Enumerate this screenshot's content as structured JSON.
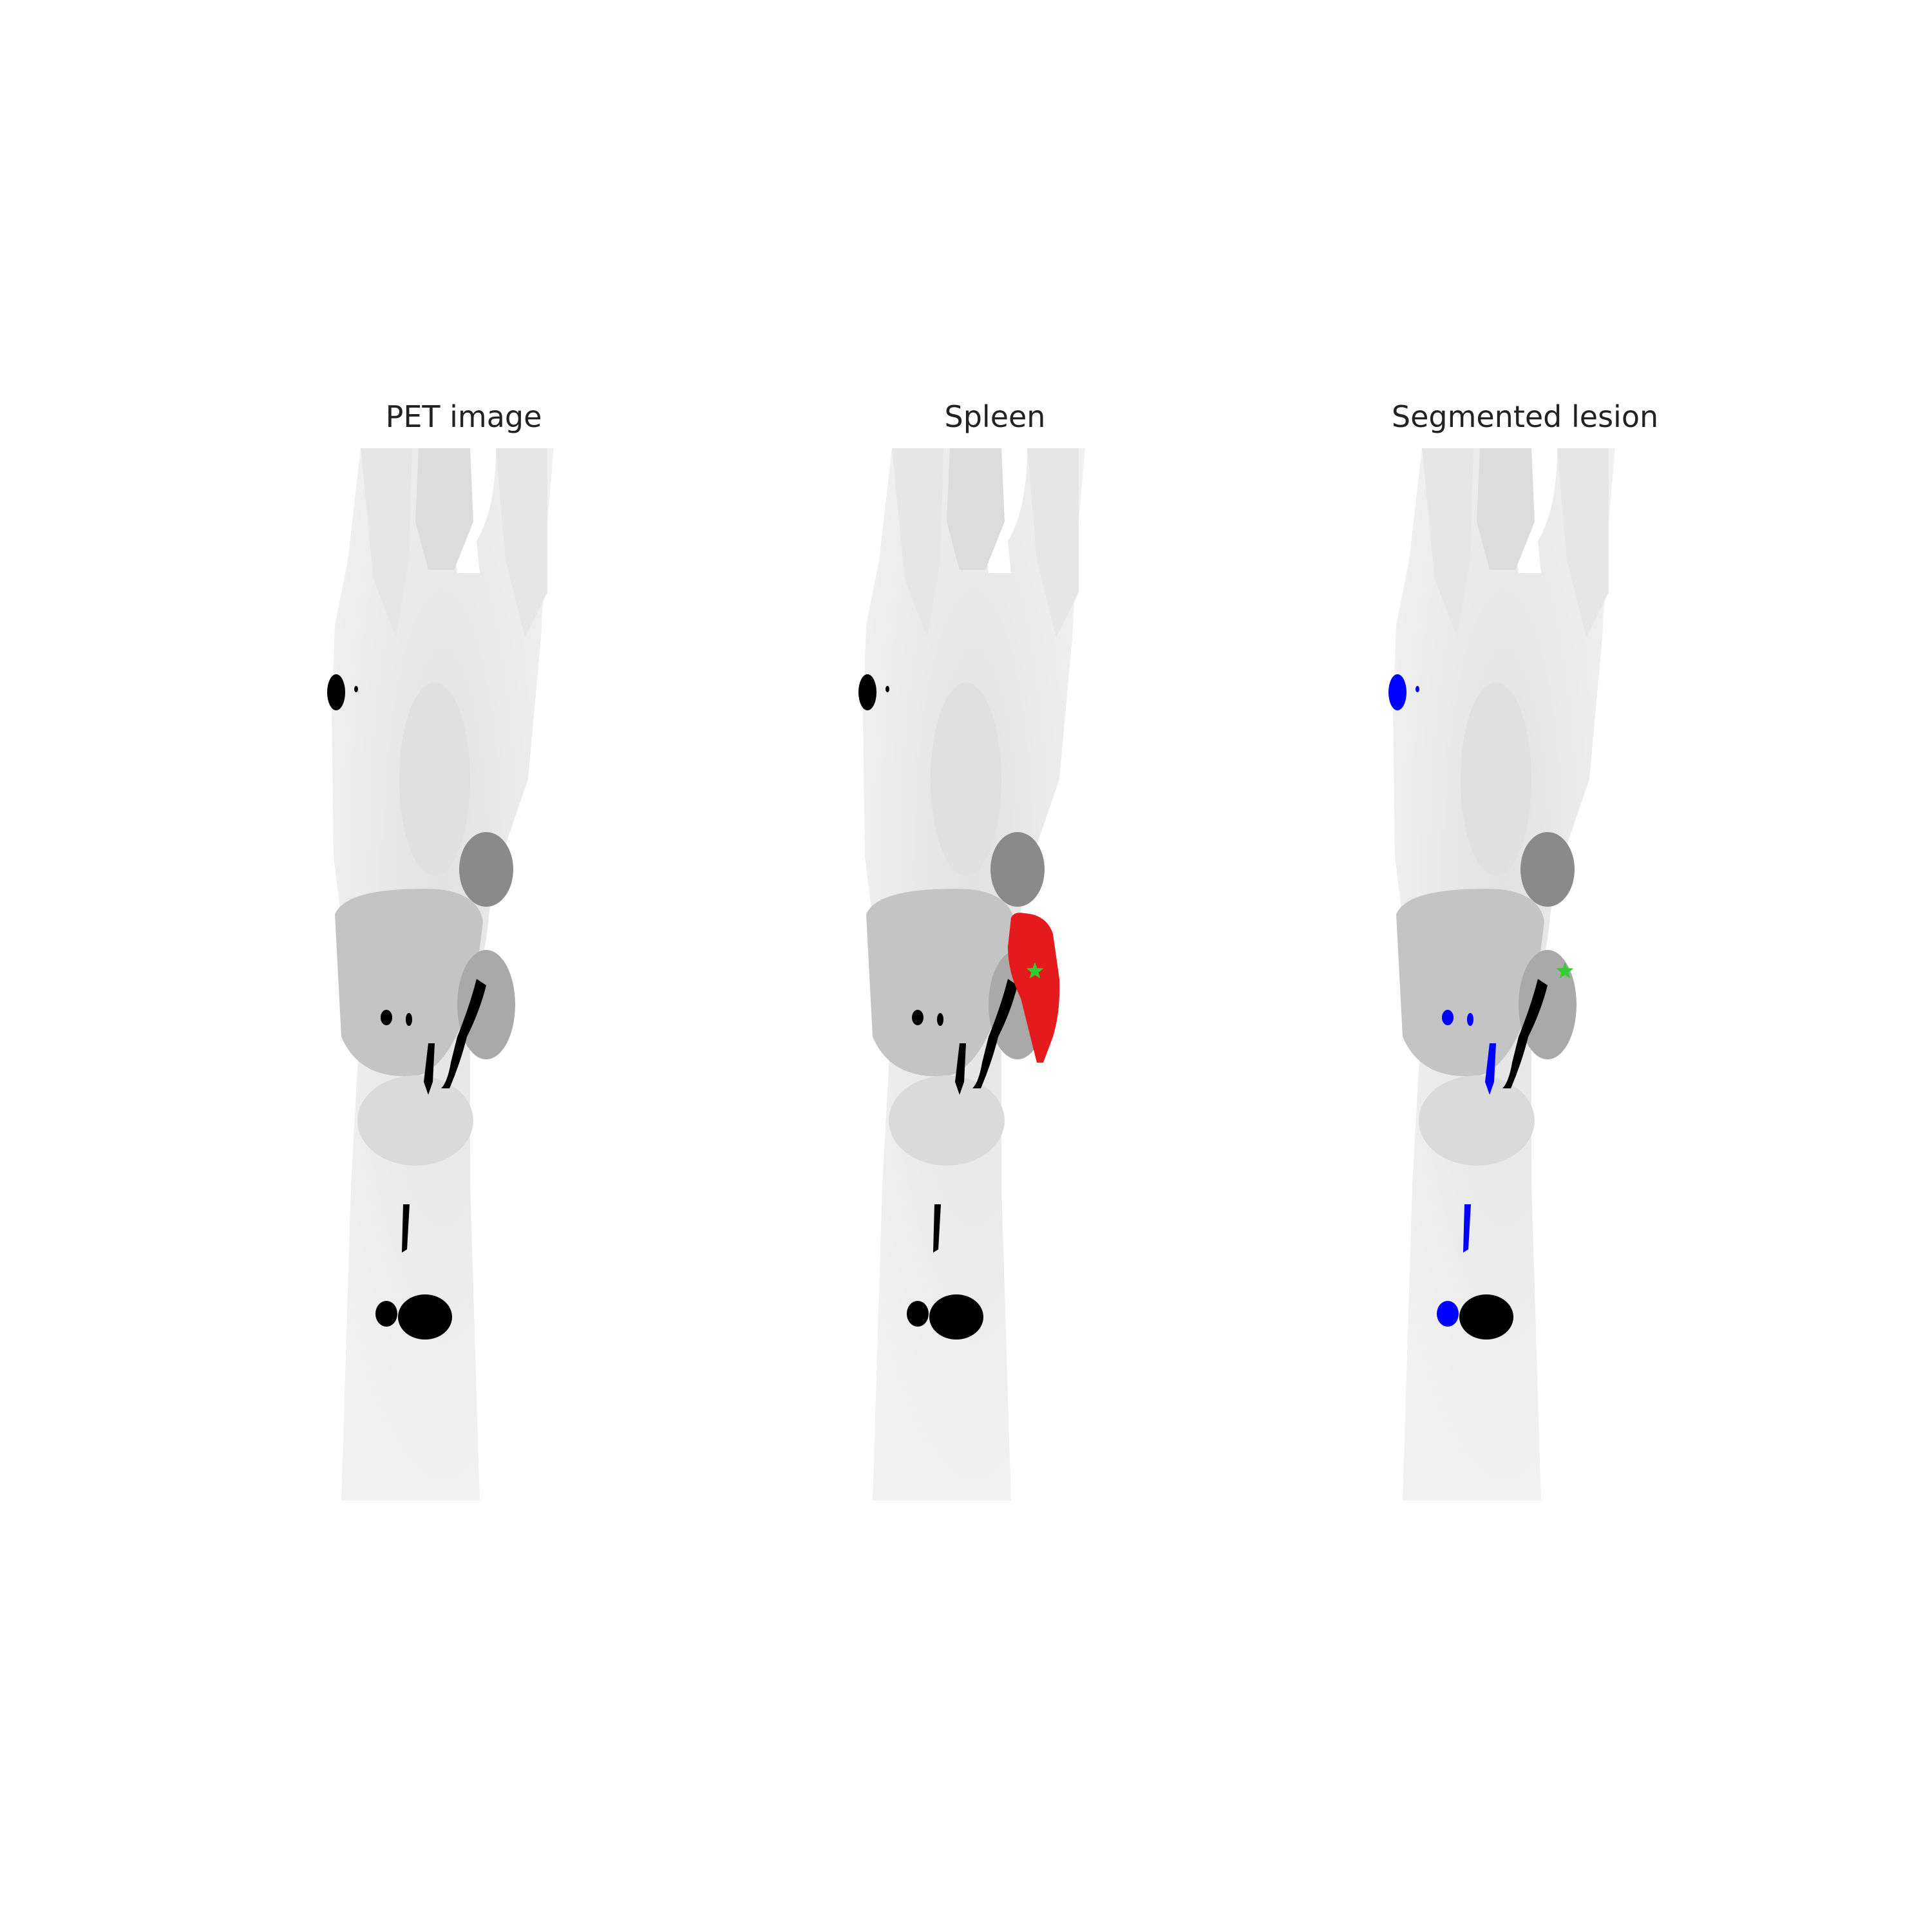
{
  "figure": {
    "panels": [
      {
        "title": "PET image",
        "overlay": "none"
      },
      {
        "title": "Spleen",
        "overlay": "spleen-mask"
      },
      {
        "title": "Segmented lesion",
        "overlay": "lesion-mask"
      }
    ],
    "colors": {
      "background": "#ffffff",
      "body": "#efefef",
      "organ": "#bdbdbd",
      "hot_spot": "#000000",
      "spleen_mask": "#e41a1c",
      "lesion_mask": "#0000ff",
      "marker": "#33cc33"
    },
    "marker_shape": "star"
  }
}
